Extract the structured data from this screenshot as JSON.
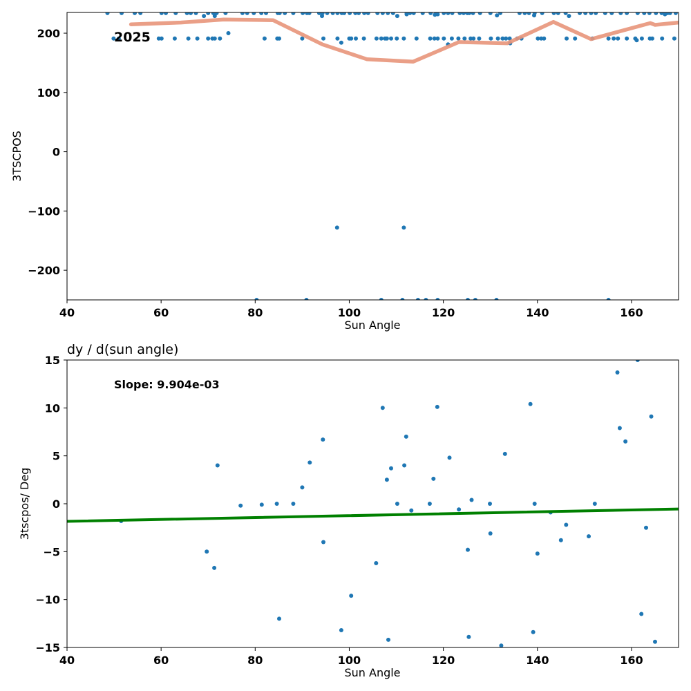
{
  "chart_data": [
    {
      "type": "scatter",
      "xlabel": "Sun Angle",
      "ylabel": "3TSCPOS",
      "xlim": [
        40,
        170
      ],
      "ylim": [
        -250,
        235
      ],
      "xticks": [
        40,
        60,
        80,
        100,
        120,
        140,
        160
      ],
      "yticks": [
        -200,
        -100,
        0,
        100,
        200
      ],
      "xtick_labels": [
        "40",
        "60",
        "80",
        "100",
        "120",
        "140",
        "160"
      ],
      "ytick_labels": [
        "−200",
        "−100",
        "0",
        "100",
        "200"
      ],
      "annotation": "2025",
      "point_color": "#1f77b4",
      "line_color": "#e8957a",
      "series": [
        {
          "style": "points",
          "points": [
            [
              48.6,
              234
            ],
            [
              51.6,
              234
            ],
            [
              54.4,
              234
            ],
            [
              55.6,
              234
            ],
            [
              60.1,
              234
            ],
            [
              61.0,
              234
            ],
            [
              63.1,
              234
            ],
            [
              65.5,
              234
            ],
            [
              66.3,
              234
            ],
            [
              67.4,
              234
            ],
            [
              70.0,
              234
            ],
            [
              71.1,
              234
            ],
            [
              71.8,
              234
            ],
            [
              73.7,
              234
            ],
            [
              77.3,
              234
            ],
            [
              78.3,
              234
            ],
            [
              79.7,
              234
            ],
            [
              81.3,
              234
            ],
            [
              82.3,
              234
            ],
            [
              84.8,
              234
            ],
            [
              85.2,
              234
            ],
            [
              86.3,
              234
            ],
            [
              88.1,
              234
            ],
            [
              90.1,
              234
            ],
            [
              91.0,
              234
            ],
            [
              91.5,
              234
            ],
            [
              93.6,
              234
            ],
            [
              94.3,
              234
            ],
            [
              95.3,
              234
            ],
            [
              96.5,
              234
            ],
            [
              97.5,
              234
            ],
            [
              98.4,
              234
            ],
            [
              98.9,
              234
            ],
            [
              100.1,
              234
            ],
            [
              101.3,
              234
            ],
            [
              102.0,
              234
            ],
            [
              103.2,
              234
            ],
            [
              104.0,
              234
            ],
            [
              106.0,
              234
            ],
            [
              107.1,
              234
            ],
            [
              108.2,
              234
            ],
            [
              109.3,
              234
            ],
            [
              112.2,
              234
            ],
            [
              112.9,
              234
            ],
            [
              113.7,
              234
            ],
            [
              115.6,
              234
            ],
            [
              117.3,
              234
            ],
            [
              118.5,
              234
            ],
            [
              120.1,
              234
            ],
            [
              121.0,
              234
            ],
            [
              121.9,
              234
            ],
            [
              123.5,
              234
            ],
            [
              124.3,
              234
            ],
            [
              125.1,
              234
            ],
            [
              125.5,
              234
            ],
            [
              126.3,
              234
            ],
            [
              127.8,
              234
            ],
            [
              130.0,
              234
            ],
            [
              132.1,
              234
            ],
            [
              136.2,
              234
            ],
            [
              137.3,
              234
            ],
            [
              138.2,
              234
            ],
            [
              139.4,
              234
            ],
            [
              141.0,
              234
            ],
            [
              143.5,
              234
            ],
            [
              144.4,
              234
            ],
            [
              146.0,
              234
            ],
            [
              149.0,
              234
            ],
            [
              150.2,
              234
            ],
            [
              151.4,
              234
            ],
            [
              152.4,
              234
            ],
            [
              154.4,
              234
            ],
            [
              155.8,
              234
            ],
            [
              157.7,
              234
            ],
            [
              159.0,
              234
            ],
            [
              161.3,
              234
            ],
            [
              162.7,
              234
            ],
            [
              163.8,
              234
            ],
            [
              165.2,
              234
            ],
            [
              166.4,
              234
            ],
            [
              167.7,
              234
            ],
            [
              168.2,
              234
            ],
            [
              169.4,
              234
            ],
            [
              69.1,
              229
            ],
            [
              71.4,
              229
            ],
            [
              94.2,
              229
            ],
            [
              110.2,
              229
            ],
            [
              112.2,
              232
            ],
            [
              118.2,
              231
            ],
            [
              118.8,
              232
            ],
            [
              131.4,
              230
            ],
            [
              139.3,
              230
            ],
            [
              146.7,
              229
            ],
            [
              167.1,
              232
            ],
            [
              74.3,
              200
            ],
            [
              49.9,
              191
            ],
            [
              51.0,
              191
            ],
            [
              59.5,
              191
            ],
            [
              60.1,
              191
            ],
            [
              62.9,
              191
            ],
            [
              65.8,
              191
            ],
            [
              67.7,
              191
            ],
            [
              70.0,
              191
            ],
            [
              70.9,
              191
            ],
            [
              71.4,
              191
            ],
            [
              72.5,
              191
            ],
            [
              82.0,
              191
            ],
            [
              84.7,
              191
            ],
            [
              85.1,
              191
            ],
            [
              90.0,
              191
            ],
            [
              94.5,
              191
            ],
            [
              97.5,
              191
            ],
            [
              100.0,
              191
            ],
            [
              100.4,
              191
            ],
            [
              101.4,
              191
            ],
            [
              103.1,
              191
            ],
            [
              105.8,
              191
            ],
            [
              106.8,
              191
            ],
            [
              107.6,
              191
            ],
            [
              108.0,
              191
            ],
            [
              108.9,
              191
            ],
            [
              110.1,
              191
            ],
            [
              111.6,
              191
            ],
            [
              114.3,
              191
            ],
            [
              117.2,
              191
            ],
            [
              118.1,
              191
            ],
            [
              118.8,
              191
            ],
            [
              120.1,
              191
            ],
            [
              121.8,
              191
            ],
            [
              123.2,
              191
            ],
            [
              124.5,
              191
            ],
            [
              125.8,
              191
            ],
            [
              126.4,
              191
            ],
            [
              127.6,
              191
            ],
            [
              130.1,
              191
            ],
            [
              131.6,
              191
            ],
            [
              132.6,
              191
            ],
            [
              133.3,
              191
            ],
            [
              134.1,
              191
            ],
            [
              135.7,
              191
            ],
            [
              136.6,
              191
            ],
            [
              140.1,
              191
            ],
            [
              140.8,
              191
            ],
            [
              141.4,
              191
            ],
            [
              146.2,
              191
            ],
            [
              148.0,
              191
            ],
            [
              151.7,
              191
            ],
            [
              155.1,
              191
            ],
            [
              156.2,
              191
            ],
            [
              157.1,
              191
            ],
            [
              159.0,
              191
            ],
            [
              160.8,
              191
            ],
            [
              162.2,
              191
            ],
            [
              163.9,
              191
            ],
            [
              164.4,
              191
            ],
            [
              166.5,
              191
            ],
            [
              169.1,
              191
            ],
            [
              161.1,
              188
            ],
            [
              98.3,
              184
            ],
            [
              121.0,
              181
            ],
            [
              134.2,
              183
            ],
            [
              97.4,
              -128
            ],
            [
              111.6,
              -128
            ],
            [
              80.3,
              -250
            ],
            [
              90.9,
              -250
            ],
            [
              106.8,
              -250
            ],
            [
              111.3,
              -250
            ],
            [
              114.6,
              -250
            ],
            [
              116.3,
              -250
            ],
            [
              118.8,
              -250
            ],
            [
              125.2,
              -250
            ],
            [
              126.8,
              -250
            ],
            [
              131.3,
              -250
            ],
            [
              155.1,
              -250
            ]
          ]
        },
        {
          "style": "line",
          "points": [
            [
              53.6,
              215
            ],
            [
              64.2,
              218
            ],
            [
              73.3,
              223
            ],
            [
              83.8,
              222
            ],
            [
              94.3,
              181
            ],
            [
              103.8,
              156
            ],
            [
              113.6,
              152
            ],
            [
              123.3,
              185
            ],
            [
              133.6,
              183
            ],
            [
              143.4,
              219
            ],
            [
              151.4,
              190
            ],
            [
              164.0,
              217
            ],
            [
              165.0,
              214
            ],
            [
              170.0,
              218
            ]
          ]
        }
      ]
    },
    {
      "type": "scatter",
      "title": "dy / d(sun angle)",
      "xlabel": "Sun Angle",
      "ylabel": "3tscpos/ Deg",
      "xlim": [
        40,
        170
      ],
      "ylim": [
        -15,
        15
      ],
      "xticks": [
        40,
        60,
        80,
        100,
        120,
        140,
        160
      ],
      "yticks": [
        -15,
        -10,
        -5,
        0,
        5,
        10,
        15
      ],
      "xtick_labels": [
        "40",
        "60",
        "80",
        "100",
        "120",
        "140",
        "160"
      ],
      "ytick_labels": [
        "−15",
        "−10",
        "−5",
        "0",
        "5",
        "10",
        "15"
      ],
      "annotation": "Slope: 9.904e-03",
      "point_color": "#1f77b4",
      "line_color": "#008000",
      "series": [
        {
          "style": "points",
          "points": [
            [
              51.5,
              -1.8
            ],
            [
              69.7,
              -5.0
            ],
            [
              71.3,
              -6.7
            ],
            [
              72.0,
              4.0
            ],
            [
              76.9,
              -0.2
            ],
            [
              81.4,
              -0.1
            ],
            [
              84.6,
              0.0
            ],
            [
              85.1,
              -12.0
            ],
            [
              88.1,
              0.0
            ],
            [
              90.0,
              1.7
            ],
            [
              91.6,
              4.3
            ],
            [
              94.4,
              6.7
            ],
            [
              94.5,
              -4.0
            ],
            [
              98.3,
              -13.2
            ],
            [
              100.4,
              -9.6
            ],
            [
              105.7,
              -6.2
            ],
            [
              107.1,
              10.0
            ],
            [
              108.0,
              2.5
            ],
            [
              108.3,
              -14.2
            ],
            [
              108.9,
              3.7
            ],
            [
              110.2,
              0.0
            ],
            [
              111.7,
              4.0
            ],
            [
              112.1,
              7.0
            ],
            [
              113.2,
              -0.7
            ],
            [
              117.1,
              0.0
            ],
            [
              117.9,
              2.6
            ],
            [
              118.7,
              10.1
            ],
            [
              121.3,
              4.8
            ],
            [
              123.3,
              -0.6
            ],
            [
              125.2,
              -4.8
            ],
            [
              125.4,
              -13.9
            ],
            [
              126.0,
              0.4
            ],
            [
              129.9,
              0.0
            ],
            [
              130.0,
              -3.1
            ],
            [
              132.3,
              -14.8
            ],
            [
              133.1,
              5.2
            ],
            [
              138.5,
              10.4
            ],
            [
              139.1,
              -13.4
            ],
            [
              139.4,
              0.0
            ],
            [
              140.0,
              -5.2
            ],
            [
              142.8,
              -0.9
            ],
            [
              145.0,
              -3.8
            ],
            [
              146.1,
              -2.2
            ],
            [
              150.9,
              -3.4
            ],
            [
              152.2,
              0.0
            ],
            [
              157.0,
              13.7
            ],
            [
              157.5,
              7.9
            ],
            [
              158.7,
              6.5
            ],
            [
              161.3,
              15.0
            ],
            [
              162.1,
              -11.5
            ],
            [
              163.1,
              -2.5
            ],
            [
              164.2,
              9.1
            ],
            [
              165.0,
              -14.4
            ]
          ]
        },
        {
          "style": "line",
          "points": [
            [
              40,
              -1.84
            ],
            [
              170,
              -0.55
            ]
          ]
        }
      ]
    }
  ]
}
